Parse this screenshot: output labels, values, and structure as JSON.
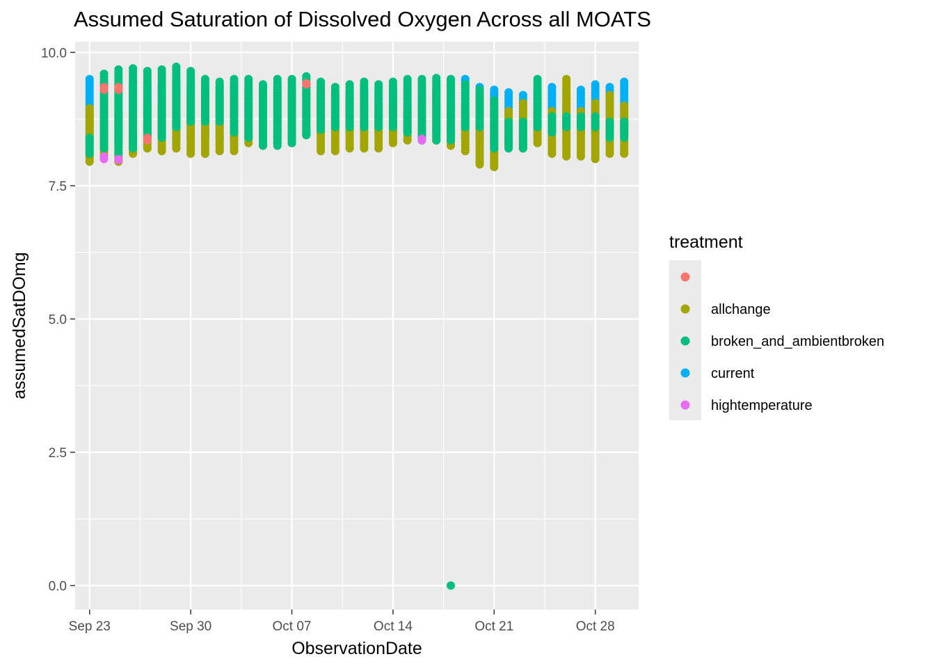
{
  "chart_data": {
    "type": "scatter",
    "title": "Assumed Saturation of Dissolved Oxygen Across all MOATS",
    "xlabel": "ObservationDate",
    "ylabel": "assumedSatDOmg",
    "x_type": "date",
    "xlim": [
      "2022-09-22",
      "2022-10-31"
    ],
    "ylim": [
      -0.45,
      10.2
    ],
    "x_ticks": [
      {
        "date": "2022-09-23",
        "label": "Sep 23"
      },
      {
        "date": "2022-09-30",
        "label": "Sep 30"
      },
      {
        "date": "2022-10-07",
        "label": "Oct 07"
      },
      {
        "date": "2022-10-14",
        "label": "Oct 14"
      },
      {
        "date": "2022-10-21",
        "label": "Oct 21"
      },
      {
        "date": "2022-10-28",
        "label": "Oct 28"
      }
    ],
    "y_ticks": [
      {
        "value": 0,
        "label": "0.0"
      },
      {
        "value": 2.5,
        "label": "2.5"
      },
      {
        "value": 5,
        "label": "5.0"
      },
      {
        "value": 7.5,
        "label": "7.5"
      },
      {
        "value": 10,
        "label": "10.0"
      }
    ],
    "grid": true,
    "legend": {
      "title": "treatment",
      "placement": "right",
      "entries": [
        {
          "name": "",
          "color": "#F8766D"
        },
        {
          "name": "allchange",
          "color": "#A3A500"
        },
        {
          "name": "broken_and_ambientbroken",
          "color": "#00BF7D"
        },
        {
          "name": "current",
          "color": "#00B0F6"
        },
        {
          "name": "hightemperature",
          "color": "#E76BF3"
        }
      ]
    },
    "series": [
      {
        "name": "current",
        "color": "#00B0F6",
        "points": [
          {
            "date": "2022-09-23",
            "min": 8.3,
            "max": 9.5
          },
          {
            "date": "2022-09-24",
            "min": 8.4,
            "max": 9.4
          },
          {
            "date": "2022-09-25",
            "min": 8.3,
            "max": 9.4
          },
          {
            "date": "2022-09-26",
            "min": 8.4,
            "max": 9.45
          },
          {
            "date": "2022-09-27",
            "min": 8.4,
            "max": 9.4
          },
          {
            "date": "2022-09-28",
            "min": 8.4,
            "max": 9.4
          },
          {
            "date": "2022-09-29",
            "min": 8.4,
            "max": 9.45
          },
          {
            "date": "2022-09-30",
            "min": 8.4,
            "max": 9.4
          },
          {
            "date": "2022-10-01",
            "min": 8.4,
            "max": 9.35
          },
          {
            "date": "2022-10-02",
            "min": 8.4,
            "max": 9.35
          },
          {
            "date": "2022-10-03",
            "min": 8.4,
            "max": 9.35
          },
          {
            "date": "2022-10-04",
            "min": 8.4,
            "max": 9.3
          },
          {
            "date": "2022-10-05",
            "min": 8.4,
            "max": 9.3
          },
          {
            "date": "2022-10-06",
            "min": 8.4,
            "max": 9.35
          },
          {
            "date": "2022-10-07",
            "min": 8.4,
            "max": 9.3
          },
          {
            "date": "2022-10-08",
            "min": 8.5,
            "max": 9.35
          },
          {
            "date": "2022-10-09",
            "min": 8.5,
            "max": 9.25
          },
          {
            "date": "2022-10-10",
            "min": 8.5,
            "max": 9.2
          },
          {
            "date": "2022-10-11",
            "min": 8.5,
            "max": 9.25
          },
          {
            "date": "2022-10-12",
            "min": 8.5,
            "max": 9.3
          },
          {
            "date": "2022-10-13",
            "min": 8.5,
            "max": 9.25
          },
          {
            "date": "2022-10-14",
            "min": 8.5,
            "max": 9.3
          },
          {
            "date": "2022-10-15",
            "min": 8.5,
            "max": 9.3
          },
          {
            "date": "2022-10-16",
            "min": 8.5,
            "max": 9.25
          },
          {
            "date": "2022-10-17",
            "min": 8.5,
            "max": 9.35
          },
          {
            "date": "2022-10-18",
            "min": 8.5,
            "max": 9.4
          },
          {
            "date": "2022-10-19",
            "min": 8.4,
            "max": 9.5
          },
          {
            "date": "2022-10-20",
            "min": 8.4,
            "max": 9.35
          },
          {
            "date": "2022-10-21",
            "min": 8.3,
            "max": 9.3
          },
          {
            "date": "2022-10-22",
            "min": 8.3,
            "max": 9.25
          },
          {
            "date": "2022-10-23",
            "min": 8.3,
            "max": 9.2
          },
          {
            "date": "2022-10-24",
            "min": 8.4,
            "max": 9.3
          },
          {
            "date": "2022-10-25",
            "min": 8.5,
            "max": 9.35
          },
          {
            "date": "2022-10-26",
            "min": 8.5,
            "max": 9.25
          },
          {
            "date": "2022-10-27",
            "min": 8.5,
            "max": 9.3
          },
          {
            "date": "2022-10-28",
            "min": 8.5,
            "max": 9.4
          },
          {
            "date": "2022-10-29",
            "min": 8.5,
            "max": 9.35
          },
          {
            "date": "2022-10-30",
            "min": 8.5,
            "max": 9.45
          }
        ]
      },
      {
        "name": "allchange",
        "color": "#A3A500",
        "points": [
          {
            "date": "2022-09-23",
            "min": 7.95,
            "max": 8.95
          },
          {
            "date": "2022-09-24",
            "min": 8.05,
            "max": 8.9
          },
          {
            "date": "2022-09-25",
            "min": 7.95,
            "max": 8.85
          },
          {
            "date": "2022-09-26",
            "min": 8.1,
            "max": 8.9
          },
          {
            "date": "2022-09-27",
            "min": 8.2,
            "max": 8.95
          },
          {
            "date": "2022-09-28",
            "min": 8.15,
            "max": 9.05
          },
          {
            "date": "2022-09-29",
            "min": 8.2,
            "max": 9.1
          },
          {
            "date": "2022-09-30",
            "min": 8.1,
            "max": 9.2
          },
          {
            "date": "2022-10-01",
            "min": 8.1,
            "max": 9.2
          },
          {
            "date": "2022-10-02",
            "min": 8.15,
            "max": 9.15
          },
          {
            "date": "2022-10-03",
            "min": 8.15,
            "max": 9.2
          },
          {
            "date": "2022-10-04",
            "min": 8.3,
            "max": 9.1
          },
          {
            "date": "2022-10-05",
            "min": 8.3,
            "max": 9.2
          },
          {
            "date": "2022-10-06",
            "min": 8.3,
            "max": 9.3
          },
          {
            "date": "2022-10-07",
            "min": 8.3,
            "max": 9.25
          },
          {
            "date": "2022-10-08",
            "min": 8.45,
            "max": 9.3
          },
          {
            "date": "2022-10-09",
            "min": 8.15,
            "max": 9.35
          },
          {
            "date": "2022-10-10",
            "min": 8.15,
            "max": 9.2
          },
          {
            "date": "2022-10-11",
            "min": 8.2,
            "max": 9.1
          },
          {
            "date": "2022-10-12",
            "min": 8.2,
            "max": 9.1
          },
          {
            "date": "2022-10-13",
            "min": 8.2,
            "max": 8.95
          },
          {
            "date": "2022-10-14",
            "min": 8.3,
            "max": 8.95
          },
          {
            "date": "2022-10-15",
            "min": 8.35,
            "max": 8.9
          },
          {
            "date": "2022-10-16",
            "min": 8.4,
            "max": 8.9
          },
          {
            "date": "2022-10-17",
            "min": 8.35,
            "max": 8.95
          },
          {
            "date": "2022-10-18",
            "min": 8.25,
            "max": 8.95
          },
          {
            "date": "2022-10-19",
            "min": 8.15,
            "max": 8.95
          },
          {
            "date": "2022-10-20",
            "min": 7.9,
            "max": 9.2
          },
          {
            "date": "2022-10-21",
            "min": 7.85,
            "max": 8.95
          },
          {
            "date": "2022-10-22",
            "min": 8.25,
            "max": 8.9
          },
          {
            "date": "2022-10-23",
            "min": 8.2,
            "max": 9.05
          },
          {
            "date": "2022-10-24",
            "min": 8.3,
            "max": 8.95
          },
          {
            "date": "2022-10-25",
            "min": 8.1,
            "max": 8.9
          },
          {
            "date": "2022-10-26",
            "min": 8.05,
            "max": 9.5
          },
          {
            "date": "2022-10-27",
            "min": 8.05,
            "max": 8.9
          },
          {
            "date": "2022-10-28",
            "min": 8.0,
            "max": 9.05
          },
          {
            "date": "2022-10-29",
            "min": 8.1,
            "max": 9.2
          },
          {
            "date": "2022-10-30",
            "min": 8.1,
            "max": 9.0
          }
        ]
      },
      {
        "name": "broken_and_ambientbroken",
        "color": "#00BF7D",
        "points": [
          {
            "date": "2022-09-23",
            "min": 8.1,
            "max": 8.4
          },
          {
            "date": "2022-09-24",
            "min": 8.2,
            "max": 9.6
          },
          {
            "date": "2022-09-25",
            "min": 8.1,
            "max": 9.68
          },
          {
            "date": "2022-09-26",
            "min": 8.2,
            "max": 9.7
          },
          {
            "date": "2022-09-27",
            "min": 8.35,
            "max": 9.65
          },
          {
            "date": "2022-09-28",
            "min": 8.4,
            "max": 9.68
          },
          {
            "date": "2022-09-29",
            "min": 8.6,
            "max": 9.73
          },
          {
            "date": "2022-09-30",
            "min": 8.7,
            "max": 9.65
          },
          {
            "date": "2022-10-01",
            "min": 8.7,
            "max": 9.5
          },
          {
            "date": "2022-10-02",
            "min": 8.7,
            "max": 9.45
          },
          {
            "date": "2022-10-03",
            "min": 8.5,
            "max": 9.5
          },
          {
            "date": "2022-10-04",
            "min": 8.4,
            "max": 9.5
          },
          {
            "date": "2022-10-05",
            "min": 8.25,
            "max": 9.4
          },
          {
            "date": "2022-10-06",
            "min": 8.25,
            "max": 9.5
          },
          {
            "date": "2022-10-07",
            "min": 8.3,
            "max": 9.5
          },
          {
            "date": "2022-10-08",
            "min": 8.45,
            "max": 9.55
          },
          {
            "date": "2022-10-09",
            "min": 8.55,
            "max": 9.45
          },
          {
            "date": "2022-10-10",
            "min": 8.6,
            "max": 9.35
          },
          {
            "date": "2022-10-11",
            "min": 8.6,
            "max": 9.4
          },
          {
            "date": "2022-10-12",
            "min": 8.6,
            "max": 9.45
          },
          {
            "date": "2022-10-13",
            "min": 8.6,
            "max": 9.4
          },
          {
            "date": "2022-10-14",
            "min": 8.6,
            "max": 9.45
          },
          {
            "date": "2022-10-15",
            "min": 8.5,
            "max": 9.5
          },
          {
            "date": "2022-10-16",
            "min": 8.35,
            "max": 9.5
          },
          {
            "date": "2022-10-17",
            "min": 8.35,
            "max": 9.52
          },
          {
            "date": "2022-10-18",
            "min": 0.0,
            "max": 9.5
          },
          {
            "date": "2022-10-19",
            "min": 8.6,
            "max": 9.4
          },
          {
            "date": "2022-10-20",
            "min": 8.6,
            "max": 9.3
          },
          {
            "date": "2022-10-21",
            "min": 8.2,
            "max": 9.1
          },
          {
            "date": "2022-10-22",
            "min": 8.2,
            "max": 8.7
          },
          {
            "date": "2022-10-23",
            "min": 8.2,
            "max": 8.7
          },
          {
            "date": "2022-10-24",
            "min": 8.6,
            "max": 9.5
          },
          {
            "date": "2022-10-25",
            "min": 8.5,
            "max": 8.8
          },
          {
            "date": "2022-10-26",
            "min": 8.6,
            "max": 8.8
          },
          {
            "date": "2022-10-27",
            "min": 8.6,
            "max": 8.8
          },
          {
            "date": "2022-10-28",
            "min": 8.6,
            "max": 8.8
          },
          {
            "date": "2022-10-29",
            "min": 8.4,
            "max": 8.7
          },
          {
            "date": "2022-10-30",
            "min": 8.4,
            "max": 8.7
          }
        ]
      },
      {
        "name": "",
        "color": "#F8766D",
        "points": [
          {
            "date": "2022-09-24",
            "min": 9.3,
            "max": 9.35
          },
          {
            "date": "2022-09-25",
            "min": 9.3,
            "max": 9.35
          },
          {
            "date": "2022-09-27",
            "min": 8.35,
            "max": 8.4
          },
          {
            "date": "2022-10-08",
            "min": 9.4,
            "max": 9.42
          }
        ]
      },
      {
        "name": "hightemperature",
        "color": "#E76BF3",
        "points": [
          {
            "date": "2022-09-24",
            "min": 8.0,
            "max": 8.05
          },
          {
            "date": "2022-09-25",
            "min": 7.98,
            "max": 8.0
          },
          {
            "date": "2022-10-16",
            "min": 8.35,
            "max": 8.38
          }
        ]
      }
    ]
  }
}
